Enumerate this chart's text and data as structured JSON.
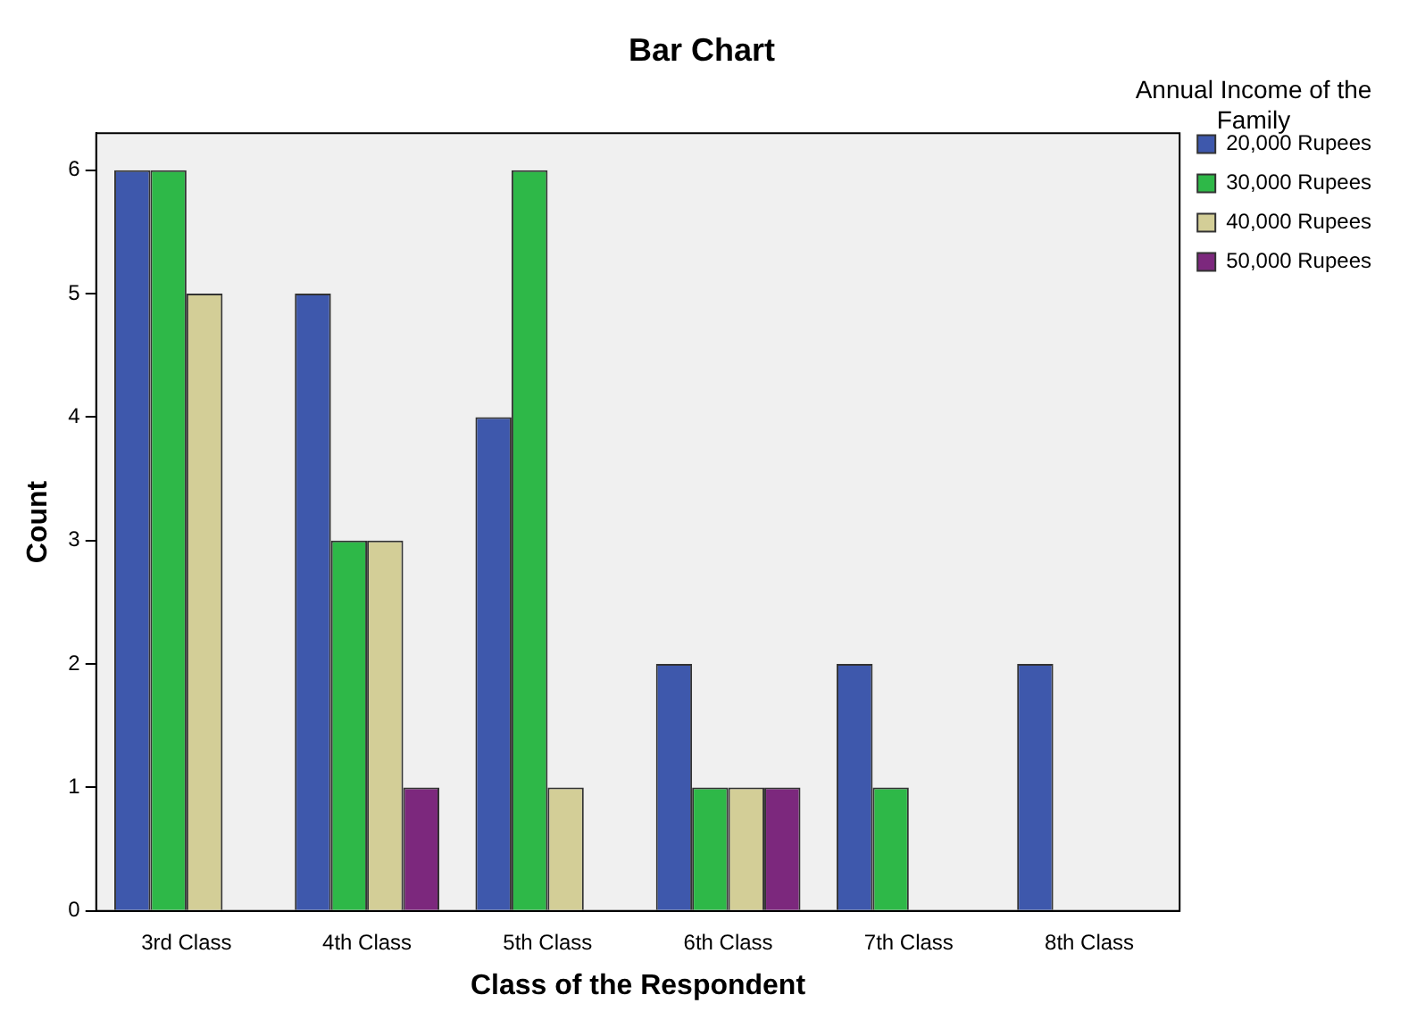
{
  "chart_data": {
    "type": "bar",
    "title": "Bar Chart",
    "xlabel": "Class of the Respondent",
    "ylabel": "Count",
    "legend_title": "Annual Income of the Family",
    "categories": [
      "3rd Class",
      "4th Class",
      "5th Class",
      "6th Class",
      "7th Class",
      "8th Class"
    ],
    "series": [
      {
        "name": "20,000 Rupees",
        "color": "#3e58ac",
        "values": [
          6,
          5,
          4,
          2,
          2,
          2
        ]
      },
      {
        "name": "30,000 Rupees",
        "color": "#2eb848",
        "values": [
          6,
          3,
          6,
          1,
          1,
          null
        ]
      },
      {
        "name": "40,000 Rupees",
        "color": "#d3ce97",
        "values": [
          5,
          3,
          1,
          1,
          null,
          null
        ]
      },
      {
        "name": "50,000 Rupees",
        "color": "#7c287d",
        "values": [
          null,
          1,
          null,
          1,
          null,
          null
        ]
      }
    ],
    "ylim": [
      0,
      6.3
    ],
    "yticks": [
      0,
      1,
      2,
      3,
      4,
      5,
      6
    ],
    "grid": false,
    "legend": "right"
  }
}
